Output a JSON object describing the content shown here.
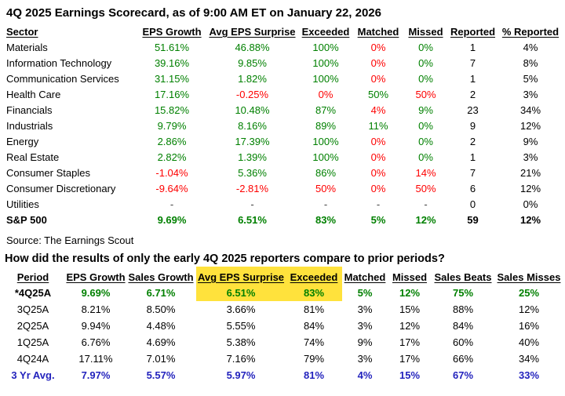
{
  "source": "Source: The Earnings Scout",
  "colors": {
    "positive_green": "#008000",
    "negative_red": "#fe0000",
    "average_blue": "#2323bd",
    "highlight_yellow": "#ffe23c",
    "text_black": "#000000"
  },
  "chart_data": [
    {
      "type": "table",
      "title": "4Q 2025 Earnings Scorecard, as of 9:00 AM ET on January 22, 2026",
      "columns": [
        "Sector",
        "EPS Growth",
        "Avg EPS Surprise",
        "Exceeded",
        "Matched",
        "Missed",
        "Reported",
        "% Reported"
      ],
      "rows": [
        {
          "cells": [
            {
              "t": "Materials",
              "c": "k"
            },
            {
              "t": "51.61%",
              "c": "g"
            },
            {
              "t": "46.88%",
              "c": "g"
            },
            {
              "t": "100%",
              "c": "g"
            },
            {
              "t": "0%",
              "c": "r"
            },
            {
              "t": "0%",
              "c": "g"
            },
            {
              "t": "1",
              "c": "k"
            },
            {
              "t": "4%",
              "c": "k"
            }
          ]
        },
        {
          "cells": [
            {
              "t": "Information Technology",
              "c": "k"
            },
            {
              "t": "39.16%",
              "c": "g"
            },
            {
              "t": "9.85%",
              "c": "g"
            },
            {
              "t": "100%",
              "c": "g"
            },
            {
              "t": "0%",
              "c": "r"
            },
            {
              "t": "0%",
              "c": "g"
            },
            {
              "t": "7",
              "c": "k"
            },
            {
              "t": "8%",
              "c": "k"
            }
          ]
        },
        {
          "cells": [
            {
              "t": "Communication Services",
              "c": "k"
            },
            {
              "t": "31.15%",
              "c": "g"
            },
            {
              "t": "1.82%",
              "c": "g"
            },
            {
              "t": "100%",
              "c": "g"
            },
            {
              "t": "0%",
              "c": "r"
            },
            {
              "t": "0%",
              "c": "g"
            },
            {
              "t": "1",
              "c": "k"
            },
            {
              "t": "5%",
              "c": "k"
            }
          ]
        },
        {
          "cells": [
            {
              "t": "Health Care",
              "c": "k"
            },
            {
              "t": "17.16%",
              "c": "g"
            },
            {
              "t": "-0.25%",
              "c": "r"
            },
            {
              "t": "0%",
              "c": "r"
            },
            {
              "t": "50%",
              "c": "g"
            },
            {
              "t": "50%",
              "c": "r"
            },
            {
              "t": "2",
              "c": "k"
            },
            {
              "t": "3%",
              "c": "k"
            }
          ]
        },
        {
          "cells": [
            {
              "t": "Financials",
              "c": "k"
            },
            {
              "t": "15.82%",
              "c": "g"
            },
            {
              "t": "10.48%",
              "c": "g"
            },
            {
              "t": "87%",
              "c": "g"
            },
            {
              "t": "4%",
              "c": "r"
            },
            {
              "t": "9%",
              "c": "g"
            },
            {
              "t": "23",
              "c": "k"
            },
            {
              "t": "34%",
              "c": "k"
            }
          ]
        },
        {
          "cells": [
            {
              "t": "Industrials",
              "c": "k"
            },
            {
              "t": "9.79%",
              "c": "g"
            },
            {
              "t": "8.16%",
              "c": "g"
            },
            {
              "t": "89%",
              "c": "g"
            },
            {
              "t": "11%",
              "c": "g"
            },
            {
              "t": "0%",
              "c": "g"
            },
            {
              "t": "9",
              "c": "k"
            },
            {
              "t": "12%",
              "c": "k"
            }
          ]
        },
        {
          "cells": [
            {
              "t": "Energy",
              "c": "k"
            },
            {
              "t": "2.86%",
              "c": "g"
            },
            {
              "t": "17.39%",
              "c": "g"
            },
            {
              "t": "100%",
              "c": "g"
            },
            {
              "t": "0%",
              "c": "r"
            },
            {
              "t": "0%",
              "c": "g"
            },
            {
              "t": "2",
              "c": "k"
            },
            {
              "t": "9%",
              "c": "k"
            }
          ]
        },
        {
          "cells": [
            {
              "t": "Real Estate",
              "c": "k"
            },
            {
              "t": "2.82%",
              "c": "g"
            },
            {
              "t": "1.39%",
              "c": "g"
            },
            {
              "t": "100%",
              "c": "g"
            },
            {
              "t": "0%",
              "c": "r"
            },
            {
              "t": "0%",
              "c": "g"
            },
            {
              "t": "1",
              "c": "k"
            },
            {
              "t": "3%",
              "c": "k"
            }
          ]
        },
        {
          "cells": [
            {
              "t": "Consumer Staples",
              "c": "k"
            },
            {
              "t": "-1.04%",
              "c": "r"
            },
            {
              "t": "5.36%",
              "c": "g"
            },
            {
              "t": "86%",
              "c": "g"
            },
            {
              "t": "0%",
              "c": "r"
            },
            {
              "t": "14%",
              "c": "r"
            },
            {
              "t": "7",
              "c": "k"
            },
            {
              "t": "21%",
              "c": "k"
            }
          ]
        },
        {
          "cells": [
            {
              "t": "Consumer Discretionary",
              "c": "k"
            },
            {
              "t": "-9.64%",
              "c": "r"
            },
            {
              "t": "-2.81%",
              "c": "r"
            },
            {
              "t": "50%",
              "c": "r"
            },
            {
              "t": "0%",
              "c": "r"
            },
            {
              "t": "50%",
              "c": "r"
            },
            {
              "t": "6",
              "c": "k"
            },
            {
              "t": "12%",
              "c": "k"
            }
          ]
        },
        {
          "cells": [
            {
              "t": "Utilities",
              "c": "k"
            },
            {
              "t": "-",
              "c": "d"
            },
            {
              "t": "-",
              "c": "d"
            },
            {
              "t": "-",
              "c": "d"
            },
            {
              "t": "-",
              "c": "d"
            },
            {
              "t": "-",
              "c": "d"
            },
            {
              "t": "0",
              "c": "k"
            },
            {
              "t": "0%",
              "c": "k"
            }
          ]
        },
        {
          "bold": true,
          "cells": [
            {
              "t": "S&P 500",
              "c": "k"
            },
            {
              "t": "9.69%",
              "c": "g"
            },
            {
              "t": "6.51%",
              "c": "g"
            },
            {
              "t": "83%",
              "c": "g"
            },
            {
              "t": "5%",
              "c": "g"
            },
            {
              "t": "12%",
              "c": "g"
            },
            {
              "t": "59",
              "c": "k"
            },
            {
              "t": "12%",
              "c": "k"
            }
          ]
        }
      ]
    },
    {
      "type": "table",
      "title": "How did the results of only the early 4Q 2025 reporters compare to prior periods?",
      "columns": [
        "Period",
        "EPS Growth",
        "Sales Growth",
        "Avg EPS Surprise",
        "Exceeded",
        "Matched",
        "Missed",
        "Sales Beats",
        "Sales Misses"
      ],
      "highlight_columns": [
        3,
        4
      ],
      "highlight_rows": [
        0
      ],
      "rows": [
        {
          "bold": true,
          "cells": [
            {
              "t": "*4Q25A",
              "c": "k"
            },
            {
              "t": "9.69%",
              "c": "g"
            },
            {
              "t": "6.71%",
              "c": "g"
            },
            {
              "t": "6.51%",
              "c": "g"
            },
            {
              "t": "83%",
              "c": "g"
            },
            {
              "t": "5%",
              "c": "g"
            },
            {
              "t": "12%",
              "c": "g"
            },
            {
              "t": "75%",
              "c": "g"
            },
            {
              "t": "25%",
              "c": "g"
            }
          ]
        },
        {
          "cells": [
            {
              "t": "3Q25A",
              "c": "k"
            },
            {
              "t": "8.21%",
              "c": "k"
            },
            {
              "t": "8.50%",
              "c": "k"
            },
            {
              "t": "3.66%",
              "c": "k"
            },
            {
              "t": "81%",
              "c": "k"
            },
            {
              "t": "3%",
              "c": "k"
            },
            {
              "t": "15%",
              "c": "k"
            },
            {
              "t": "88%",
              "c": "k"
            },
            {
              "t": "12%",
              "c": "k"
            }
          ]
        },
        {
          "cells": [
            {
              "t": "2Q25A",
              "c": "k"
            },
            {
              "t": "9.94%",
              "c": "k"
            },
            {
              "t": "4.48%",
              "c": "k"
            },
            {
              "t": "5.55%",
              "c": "k"
            },
            {
              "t": "84%",
              "c": "k"
            },
            {
              "t": "3%",
              "c": "k"
            },
            {
              "t": "12%",
              "c": "k"
            },
            {
              "t": "84%",
              "c": "k"
            },
            {
              "t": "16%",
              "c": "k"
            }
          ]
        },
        {
          "cells": [
            {
              "t": "1Q25A",
              "c": "k"
            },
            {
              "t": "6.76%",
              "c": "k"
            },
            {
              "t": "4.69%",
              "c": "k"
            },
            {
              "t": "5.38%",
              "c": "k"
            },
            {
              "t": "74%",
              "c": "k"
            },
            {
              "t": "9%",
              "c": "k"
            },
            {
              "t": "17%",
              "c": "k"
            },
            {
              "t": "60%",
              "c": "k"
            },
            {
              "t": "40%",
              "c": "k"
            }
          ]
        },
        {
          "cells": [
            {
              "t": "4Q24A",
              "c": "k"
            },
            {
              "t": "17.11%",
              "c": "k"
            },
            {
              "t": "7.01%",
              "c": "k"
            },
            {
              "t": "7.16%",
              "c": "k"
            },
            {
              "t": "79%",
              "c": "k"
            },
            {
              "t": "3%",
              "c": "k"
            },
            {
              "t": "17%",
              "c": "k"
            },
            {
              "t": "66%",
              "c": "k"
            },
            {
              "t": "34%",
              "c": "k"
            }
          ]
        },
        {
          "bold": true,
          "cells": [
            {
              "t": "3 Yr Avg.",
              "c": "b"
            },
            {
              "t": "7.97%",
              "c": "b"
            },
            {
              "t": "5.57%",
              "c": "b"
            },
            {
              "t": "5.97%",
              "c": "b"
            },
            {
              "t": "81%",
              "c": "b"
            },
            {
              "t": "4%",
              "c": "b"
            },
            {
              "t": "15%",
              "c": "b"
            },
            {
              "t": "67%",
              "c": "b"
            },
            {
              "t": "33%",
              "c": "b"
            }
          ]
        }
      ]
    }
  ]
}
